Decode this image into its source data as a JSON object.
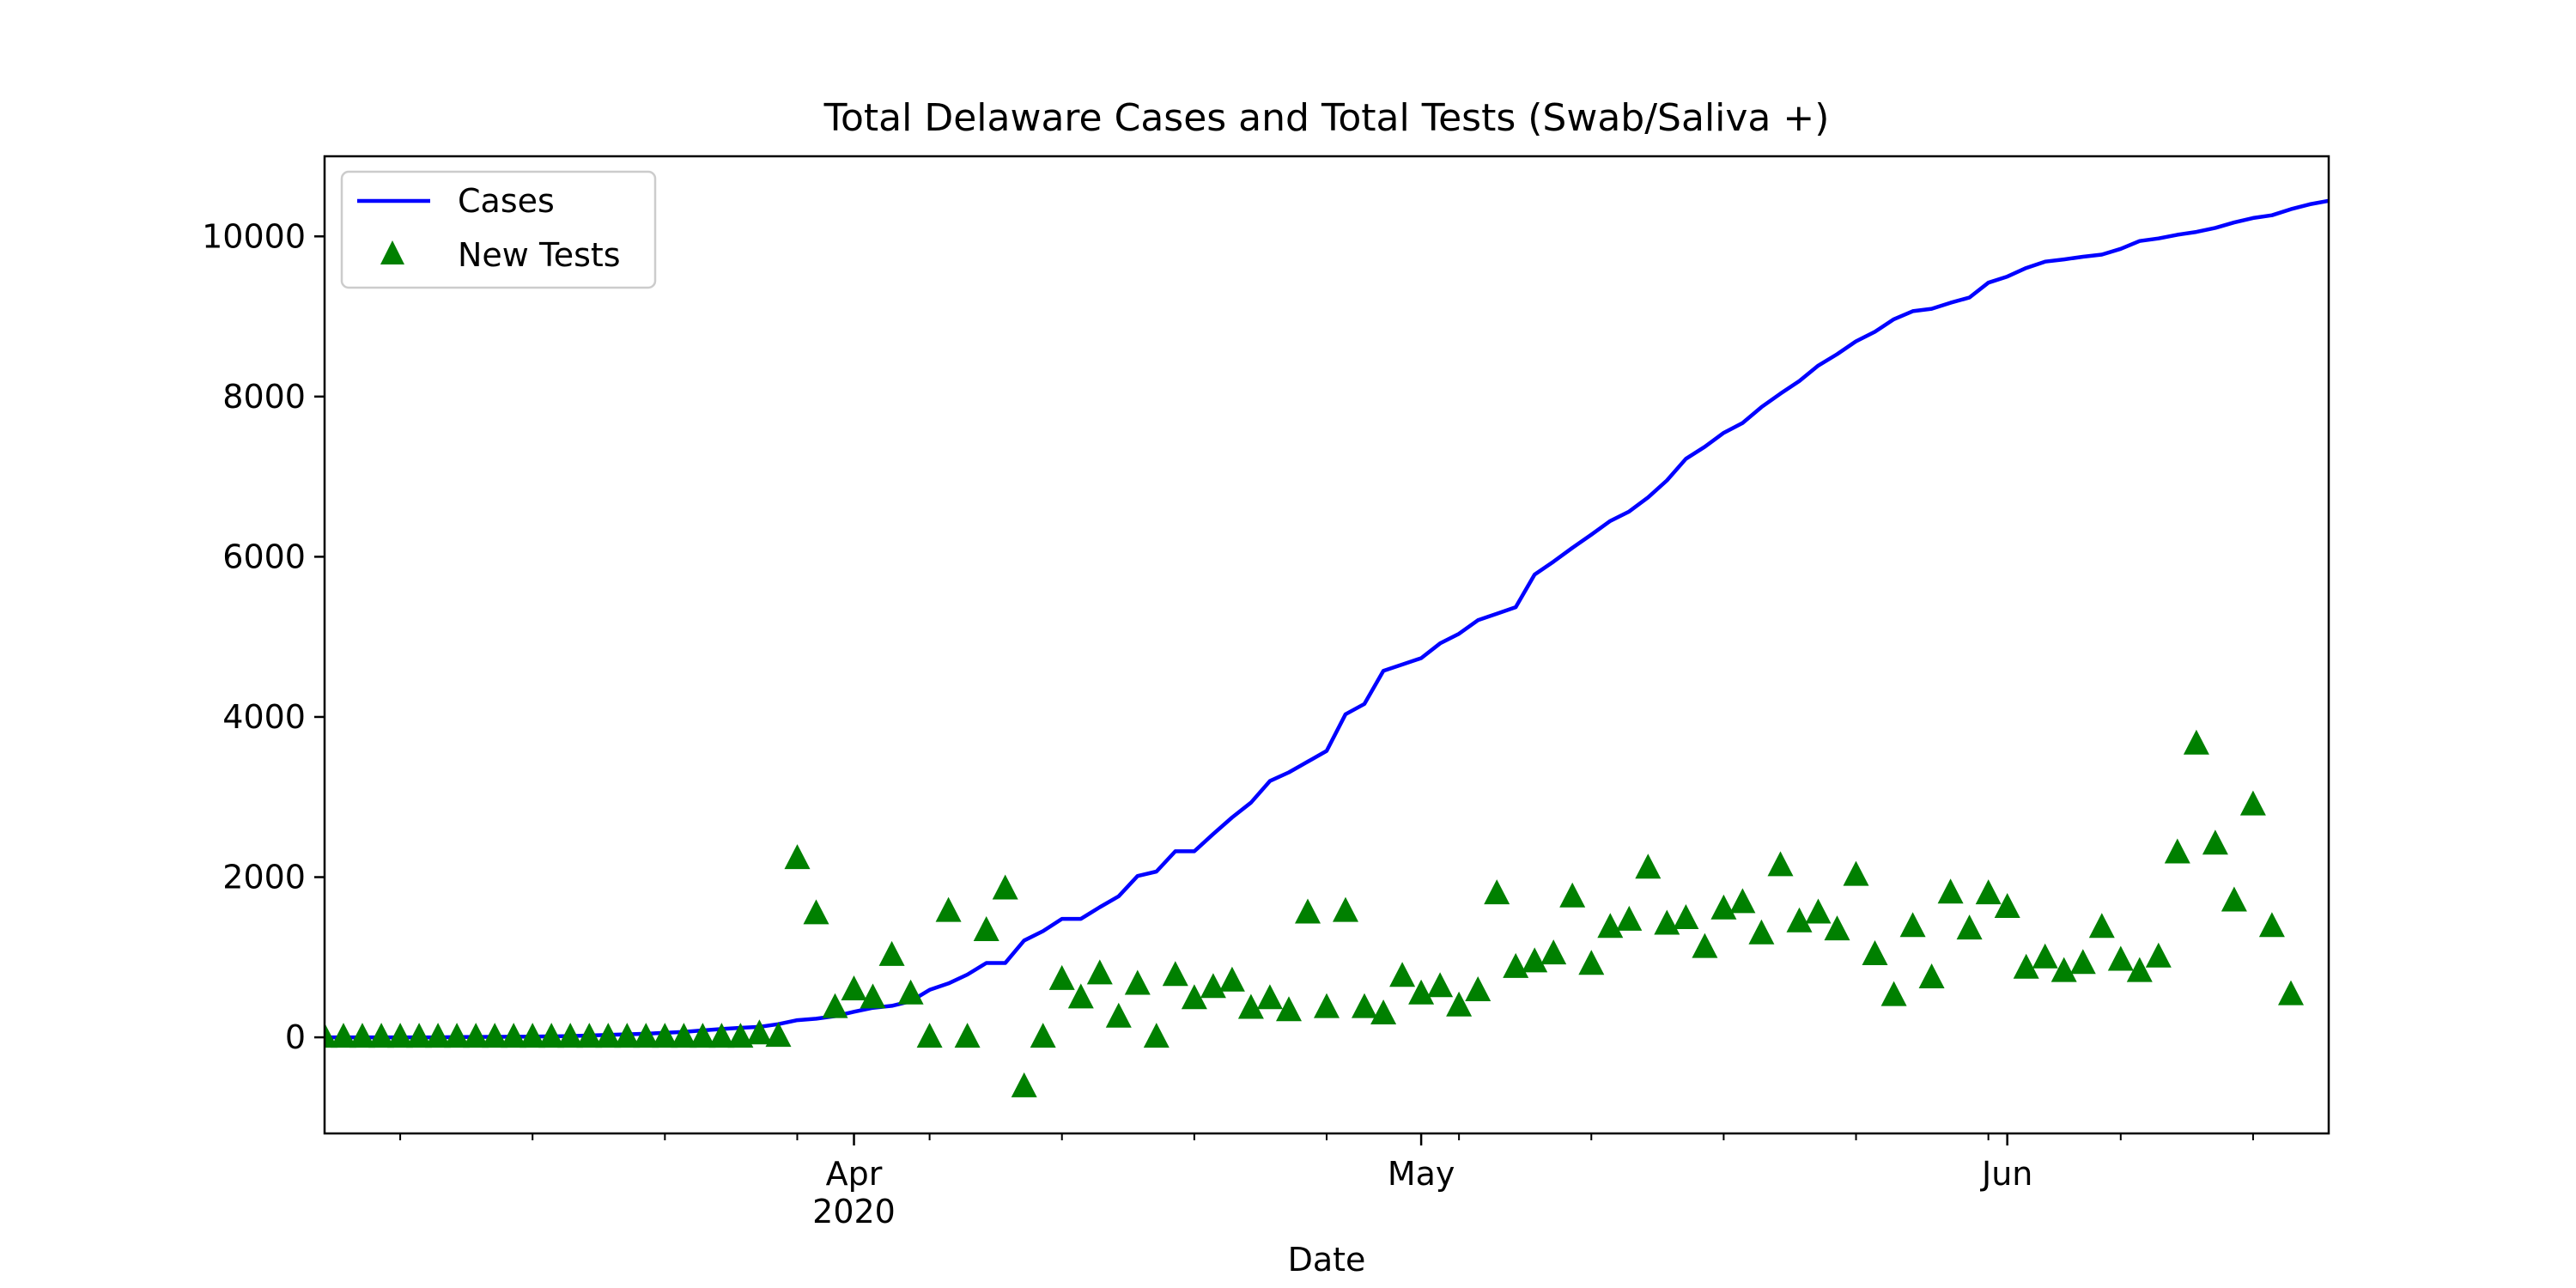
{
  "chart_data": {
    "type": "line",
    "title": "Total Delaware Cases and Total Tests (Swab/Saliva +)",
    "xlabel": "Date",
    "ylabel": "",
    "x_range": [
      "2020-03-04",
      "2020-06-18"
    ],
    "ylim": [
      -1200,
      11000
    ],
    "yticks": [
      0,
      2000,
      4000,
      6000,
      8000,
      10000
    ],
    "xticks": [
      {
        "date": "2020-04-01",
        "label": "Apr",
        "sublabel": "2020"
      },
      {
        "date": "2020-05-01",
        "label": "May",
        "sublabel": ""
      },
      {
        "date": "2020-06-01",
        "label": "Jun",
        "sublabel": ""
      }
    ],
    "x_minor_ticks": [
      "2020-03-08",
      "2020-03-15",
      "2020-03-22",
      "2020-03-29",
      "2020-04-05",
      "2020-04-12",
      "2020-04-19",
      "2020-04-26",
      "2020-05-03",
      "2020-05-10",
      "2020-05-17",
      "2020-05-24",
      "2020-05-31",
      "2020-06-07",
      "2020-06-14"
    ],
    "grid": false,
    "legend_position": "top-left",
    "series": [
      {
        "name": "Cases",
        "kind": "line",
        "color": "#0000ff",
        "points": [
          [
            "2020-03-04",
            0
          ],
          [
            "2020-03-06",
            0
          ],
          [
            "2020-03-08",
            0
          ],
          [
            "2020-03-10",
            0
          ],
          [
            "2020-03-11",
            4
          ],
          [
            "2020-03-13",
            6
          ],
          [
            "2020-03-15",
            8
          ],
          [
            "2020-03-17",
            16
          ],
          [
            "2020-03-19",
            30
          ],
          [
            "2020-03-21",
            45
          ],
          [
            "2020-03-23",
            68
          ],
          [
            "2020-03-24",
            87
          ],
          [
            "2020-03-25",
            104
          ],
          [
            "2020-03-26",
            119
          ],
          [
            "2020-03-27",
            130
          ],
          [
            "2020-03-28",
            165
          ],
          [
            "2020-03-29",
            214
          ],
          [
            "2020-03-30",
            232
          ],
          [
            "2020-03-31",
            264
          ],
          [
            "2020-04-01",
            319
          ],
          [
            "2020-04-02",
            368
          ],
          [
            "2020-04-03",
            393
          ],
          [
            "2020-04-04",
            450
          ],
          [
            "2020-04-05",
            593
          ],
          [
            "2020-04-06",
            673
          ],
          [
            "2020-04-07",
            783
          ],
          [
            "2020-04-08",
            928
          ],
          [
            "2020-04-09",
            928
          ],
          [
            "2020-04-10",
            1209
          ],
          [
            "2020-04-11",
            1326
          ],
          [
            "2020-04-12",
            1479
          ],
          [
            "2020-04-13",
            1479
          ],
          [
            "2020-04-14",
            1625
          ],
          [
            "2020-04-15",
            1761
          ],
          [
            "2020-04-16",
            2014
          ],
          [
            "2020-04-17",
            2070
          ],
          [
            "2020-04-18",
            2323
          ],
          [
            "2020-04-19",
            2323
          ],
          [
            "2020-04-20",
            2538
          ],
          [
            "2020-04-21",
            2745
          ],
          [
            "2020-04-22",
            2931
          ],
          [
            "2020-04-23",
            3200
          ],
          [
            "2020-04-24",
            3308
          ],
          [
            "2020-04-25",
            3442
          ],
          [
            "2020-04-26",
            3576
          ],
          [
            "2020-04-27",
            4034
          ],
          [
            "2020-04-28",
            4162
          ],
          [
            "2020-04-29",
            4575
          ],
          [
            "2020-04-30",
            4655
          ],
          [
            "2020-05-01",
            4734
          ],
          [
            "2020-05-02",
            4918
          ],
          [
            "2020-05-03",
            5038
          ],
          [
            "2020-05-04",
            5208
          ],
          [
            "2020-05-05",
            5288
          ],
          [
            "2020-05-06",
            5371
          ],
          [
            "2020-05-07",
            5778
          ],
          [
            "2020-05-08",
            5939
          ],
          [
            "2020-05-09",
            6111
          ],
          [
            "2020-05-10",
            6277
          ],
          [
            "2020-05-11",
            6447
          ],
          [
            "2020-05-12",
            6565
          ],
          [
            "2020-05-13",
            6741
          ],
          [
            "2020-05-14",
            6953
          ],
          [
            "2020-05-15",
            7223
          ],
          [
            "2020-05-16",
            7373
          ],
          [
            "2020-05-17",
            7547
          ],
          [
            "2020-05-18",
            7670
          ],
          [
            "2020-05-19",
            7869
          ],
          [
            "2020-05-20",
            8037
          ],
          [
            "2020-05-21",
            8194
          ],
          [
            "2020-05-22",
            8386
          ],
          [
            "2020-05-23",
            8529
          ],
          [
            "2020-05-24",
            8690
          ],
          [
            "2020-05-25",
            8809
          ],
          [
            "2020-05-26",
            8965
          ],
          [
            "2020-05-27",
            9066
          ],
          [
            "2020-05-28",
            9096
          ],
          [
            "2020-05-29",
            9171
          ],
          [
            "2020-05-30",
            9236
          ],
          [
            "2020-05-31",
            9422
          ],
          [
            "2020-06-01",
            9498
          ],
          [
            "2020-06-02",
            9605
          ],
          [
            "2020-06-03",
            9685
          ],
          [
            "2020-06-04",
            9712
          ],
          [
            "2020-06-05",
            9746
          ],
          [
            "2020-06-06",
            9773
          ],
          [
            "2020-06-07",
            9844
          ],
          [
            "2020-06-08",
            9942
          ],
          [
            "2020-06-09",
            9974
          ],
          [
            "2020-06-10",
            10020
          ],
          [
            "2020-06-11",
            10056
          ],
          [
            "2020-06-12",
            10106
          ],
          [
            "2020-06-13",
            10173
          ],
          [
            "2020-06-14",
            10229
          ],
          [
            "2020-06-15",
            10264
          ],
          [
            "2020-06-16",
            10340
          ],
          [
            "2020-06-17",
            10401
          ],
          [
            "2020-06-18",
            10444
          ]
        ]
      },
      {
        "name": "New Tests",
        "kind": "scatter",
        "marker": "triangle",
        "color": "#008000",
        "points": [
          [
            "2020-03-04",
            0
          ],
          [
            "2020-03-05",
            0
          ],
          [
            "2020-03-06",
            0
          ],
          [
            "2020-03-07",
            0
          ],
          [
            "2020-03-08",
            0
          ],
          [
            "2020-03-09",
            0
          ],
          [
            "2020-03-10",
            0
          ],
          [
            "2020-03-11",
            0
          ],
          [
            "2020-03-12",
            0
          ],
          [
            "2020-03-13",
            0
          ],
          [
            "2020-03-14",
            0
          ],
          [
            "2020-03-15",
            0
          ],
          [
            "2020-03-16",
            0
          ],
          [
            "2020-03-17",
            0
          ],
          [
            "2020-03-18",
            0
          ],
          [
            "2020-03-19",
            0
          ],
          [
            "2020-03-20",
            0
          ],
          [
            "2020-03-21",
            0
          ],
          [
            "2020-03-22",
            0
          ],
          [
            "2020-03-23",
            0
          ],
          [
            "2020-03-24",
            0
          ],
          [
            "2020-03-25",
            0
          ],
          [
            "2020-03-26",
            0
          ],
          [
            "2020-03-27",
            40
          ],
          [
            "2020-03-28",
            10
          ],
          [
            "2020-03-29",
            2230
          ],
          [
            "2020-03-30",
            1540
          ],
          [
            "2020-03-31",
            370
          ],
          [
            "2020-04-01",
            590
          ],
          [
            "2020-04-02",
            490
          ],
          [
            "2020-04-03",
            1020
          ],
          [
            "2020-04-04",
            540
          ],
          [
            "2020-04-05",
            0
          ],
          [
            "2020-04-06",
            1570
          ],
          [
            "2020-04-07",
            0
          ],
          [
            "2020-04-08",
            1330
          ],
          [
            "2020-04-09",
            1850
          ],
          [
            "2020-04-10",
            -620
          ],
          [
            "2020-04-11",
            0
          ],
          [
            "2020-04-12",
            720
          ],
          [
            "2020-04-13",
            490
          ],
          [
            "2020-04-14",
            790
          ],
          [
            "2020-04-15",
            250
          ],
          [
            "2020-04-16",
            660
          ],
          [
            "2020-04-17",
            0
          ],
          [
            "2020-04-18",
            770
          ],
          [
            "2020-04-19",
            480
          ],
          [
            "2020-04-20",
            620
          ],
          [
            "2020-04-21",
            700
          ],
          [
            "2020-04-22",
            360
          ],
          [
            "2020-04-23",
            480
          ],
          [
            "2020-04-24",
            330
          ],
          [
            "2020-04-25",
            1550
          ],
          [
            "2020-04-26",
            370
          ],
          [
            "2020-04-27",
            1570
          ],
          [
            "2020-04-28",
            370
          ],
          [
            "2020-04-29",
            290
          ],
          [
            "2020-04-30",
            760
          ],
          [
            "2020-05-01",
            540
          ],
          [
            "2020-05-02",
            630
          ],
          [
            "2020-05-03",
            390
          ],
          [
            "2020-05-04",
            580
          ],
          [
            "2020-05-05",
            1790
          ],
          [
            "2020-05-06",
            870
          ],
          [
            "2020-05-07",
            940
          ],
          [
            "2020-05-08",
            1040
          ],
          [
            "2020-05-09",
            1750
          ],
          [
            "2020-05-10",
            910
          ],
          [
            "2020-05-11",
            1370
          ],
          [
            "2020-05-12",
            1460
          ],
          [
            "2020-05-13",
            2110
          ],
          [
            "2020-05-14",
            1410
          ],
          [
            "2020-05-15",
            1480
          ],
          [
            "2020-05-16",
            1120
          ],
          [
            "2020-05-17",
            1600
          ],
          [
            "2020-05-18",
            1680
          ],
          [
            "2020-05-19",
            1290
          ],
          [
            "2020-05-20",
            2140
          ],
          [
            "2020-05-21",
            1440
          ],
          [
            "2020-05-22",
            1550
          ],
          [
            "2020-05-23",
            1340
          ],
          [
            "2020-05-24",
            2020
          ],
          [
            "2020-05-25",
            1030
          ],
          [
            "2020-05-26",
            520
          ],
          [
            "2020-05-27",
            1380
          ],
          [
            "2020-05-28",
            740
          ],
          [
            "2020-05-29",
            1800
          ],
          [
            "2020-05-30",
            1350
          ],
          [
            "2020-05-31",
            1790
          ],
          [
            "2020-06-01",
            1620
          ],
          [
            "2020-06-02",
            860
          ],
          [
            "2020-06-03",
            990
          ],
          [
            "2020-06-04",
            820
          ],
          [
            "2020-06-05",
            920
          ],
          [
            "2020-06-06",
            1370
          ],
          [
            "2020-06-07",
            960
          ],
          [
            "2020-06-08",
            820
          ],
          [
            "2020-06-09",
            1000
          ],
          [
            "2020-06-10",
            2300
          ],
          [
            "2020-06-11",
            3660
          ],
          [
            "2020-06-12",
            2410
          ],
          [
            "2020-06-13",
            1700
          ],
          [
            "2020-06-14",
            2900
          ],
          [
            "2020-06-15",
            1380
          ],
          [
            "2020-06-16",
            530
          ]
        ]
      }
    ]
  }
}
